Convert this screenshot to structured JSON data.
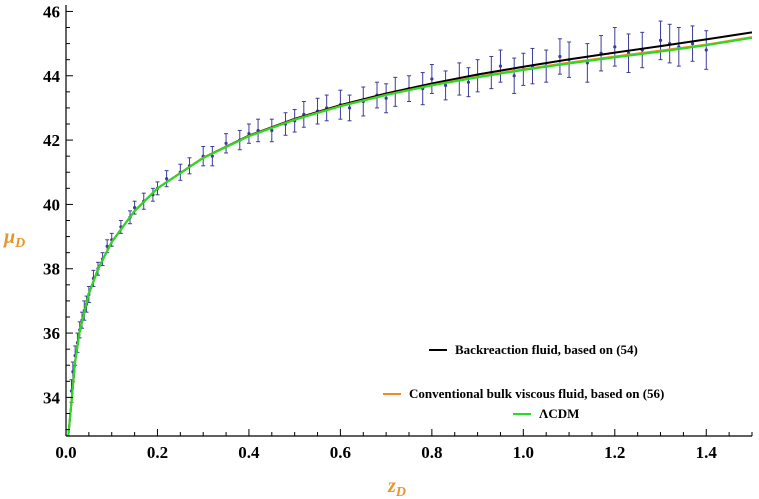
{
  "chart_data": {
    "type": "scatter",
    "title": "",
    "xlabel": {
      "main": "z",
      "sub": "D"
    },
    "ylabel": {
      "main": "μ",
      "sub": "D"
    },
    "xlim": [
      0,
      1.5
    ],
    "ylim": [
      32.8,
      46.2
    ],
    "xticks": [
      0.0,
      0.2,
      0.4,
      0.6,
      0.8,
      1.0,
      1.2,
      1.4
    ],
    "xtick_labels": [
      "0.0",
      "0.2",
      "0.4",
      "0.6",
      "0.8",
      "1.0",
      "1.2",
      "1.4"
    ],
    "yticks": [
      34,
      36,
      38,
      40,
      42,
      44,
      46
    ],
    "ytick_labels": [
      "34",
      "36",
      "38",
      "40",
      "42",
      "44",
      "46"
    ],
    "grid": false,
    "legend_position": "bottom-right",
    "colors": {
      "data_points": "#3c3c9a",
      "backreaction": "#000000",
      "bulk_viscous": "#f08a24",
      "lcdm": "#22dd22",
      "axis_title": "#e8952a"
    },
    "series": [
      {
        "name": "Backreaction fluid, based on (54)",
        "kind": "line",
        "x": [
          0.005,
          0.01,
          0.02,
          0.03,
          0.05,
          0.07,
          0.1,
          0.15,
          0.2,
          0.3,
          0.4,
          0.5,
          0.6,
          0.7,
          0.8,
          0.9,
          1.0,
          1.1,
          1.2,
          1.3,
          1.4,
          1.5
        ],
        "y": [
          32.8,
          33.55,
          35.12,
          36.06,
          37.22,
          37.99,
          38.83,
          39.8,
          40.5,
          41.45,
          42.14,
          42.66,
          43.09,
          43.45,
          43.76,
          44.04,
          44.28,
          44.51,
          44.72,
          44.92,
          45.13,
          45.35
        ]
      },
      {
        "name": "Conventional bulk viscous fluid, based on (56)",
        "kind": "line",
        "x": [
          0.005,
          0.01,
          0.02,
          0.03,
          0.05,
          0.07,
          0.1,
          0.15,
          0.2,
          0.3,
          0.4,
          0.5,
          0.6,
          0.7,
          0.8,
          0.9,
          1.0,
          1.1,
          1.2,
          1.3,
          1.4,
          1.5
        ],
        "y": [
          32.8,
          33.55,
          35.12,
          36.06,
          37.22,
          37.99,
          38.83,
          39.8,
          40.5,
          41.45,
          42.13,
          42.64,
          43.06,
          43.41,
          43.71,
          43.97,
          44.2,
          44.41,
          44.6,
          44.78,
          44.97,
          45.2
        ]
      },
      {
        "name": "ΛCDM",
        "kind": "line",
        "x": [
          0.005,
          0.01,
          0.02,
          0.03,
          0.05,
          0.07,
          0.1,
          0.15,
          0.2,
          0.3,
          0.4,
          0.5,
          0.6,
          0.7,
          0.8,
          0.9,
          1.0,
          1.1,
          1.2,
          1.3,
          1.4,
          1.5
        ],
        "y": [
          32.8,
          33.55,
          35.12,
          36.06,
          37.22,
          37.99,
          38.83,
          39.8,
          40.5,
          41.44,
          42.12,
          42.63,
          43.05,
          43.4,
          43.7,
          43.95,
          44.18,
          44.38,
          44.57,
          44.75,
          44.95,
          45.18
        ]
      },
      {
        "kind": "errorbar",
        "x": [
          0.012,
          0.015,
          0.02,
          0.025,
          0.03,
          0.035,
          0.04,
          0.045,
          0.05,
          0.06,
          0.07,
          0.08,
          0.09,
          0.1,
          0.12,
          0.14,
          0.15,
          0.17,
          0.19,
          0.2,
          0.22,
          0.25,
          0.27,
          0.3,
          0.32,
          0.35,
          0.38,
          0.4,
          0.42,
          0.45,
          0.48,
          0.5,
          0.52,
          0.55,
          0.57,
          0.6,
          0.62,
          0.65,
          0.68,
          0.7,
          0.72,
          0.75,
          0.78,
          0.8,
          0.83,
          0.86,
          0.88,
          0.9,
          0.93,
          0.95,
          0.98,
          1.0,
          1.02,
          1.05,
          1.08,
          1.1,
          1.14,
          1.17,
          1.2,
          1.23,
          1.26,
          1.3,
          1.32,
          1.34,
          1.37,
          1.4
        ],
        "y": [
          34.2,
          34.8,
          35.3,
          35.7,
          36.1,
          36.4,
          36.7,
          36.9,
          37.2,
          37.7,
          38.0,
          38.3,
          38.7,
          38.9,
          39.3,
          39.6,
          39.9,
          40.1,
          40.3,
          40.5,
          40.8,
          41.0,
          41.2,
          41.5,
          41.5,
          41.9,
          42.0,
          42.2,
          42.3,
          42.3,
          42.5,
          42.6,
          42.8,
          42.9,
          43.0,
          43.1,
          43.0,
          43.2,
          43.4,
          43.3,
          43.5,
          43.6,
          43.6,
          43.9,
          43.7,
          43.9,
          43.8,
          44.0,
          44.1,
          44.3,
          44.0,
          44.2,
          44.3,
          44.3,
          44.6,
          44.5,
          44.4,
          44.7,
          44.9,
          44.7,
          44.8,
          45.1,
          45.0,
          44.9,
          45.0,
          44.8
        ],
        "err": [
          0.35,
          0.3,
          0.3,
          0.3,
          0.25,
          0.25,
          0.3,
          0.25,
          0.25,
          0.25,
          0.2,
          0.2,
          0.2,
          0.2,
          0.2,
          0.2,
          0.2,
          0.25,
          0.2,
          0.2,
          0.25,
          0.25,
          0.25,
          0.3,
          0.3,
          0.3,
          0.3,
          0.3,
          0.35,
          0.35,
          0.35,
          0.35,
          0.4,
          0.4,
          0.4,
          0.45,
          0.4,
          0.45,
          0.4,
          0.45,
          0.45,
          0.4,
          0.5,
          0.45,
          0.45,
          0.5,
          0.45,
          0.5,
          0.5,
          0.5,
          0.55,
          0.5,
          0.55,
          0.5,
          0.55,
          0.55,
          0.6,
          0.55,
          0.6,
          0.6,
          0.55,
          0.6,
          0.6,
          0.6,
          0.55,
          0.6
        ]
      }
    ]
  }
}
